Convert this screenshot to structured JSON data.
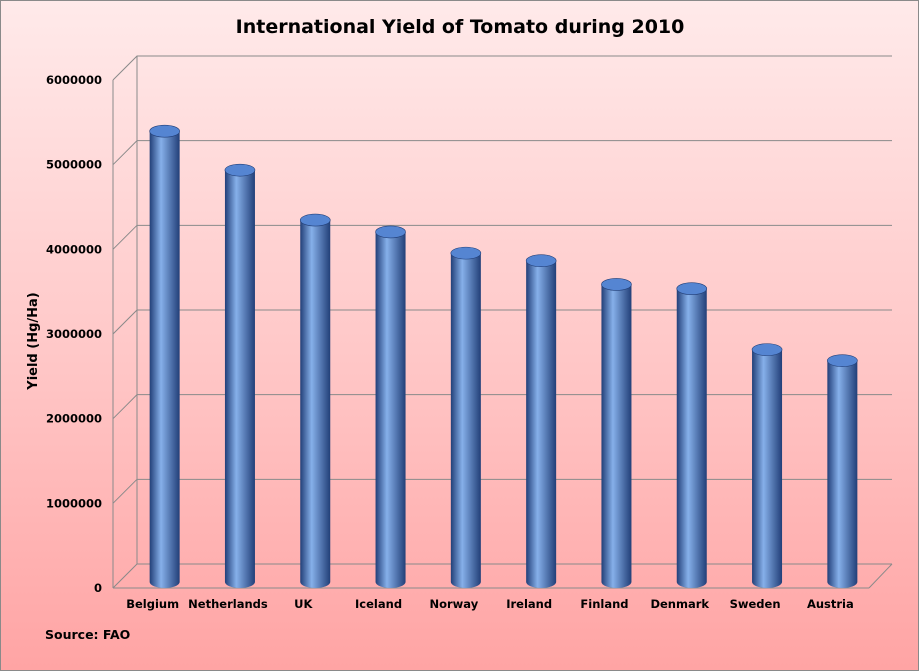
{
  "chart_data": {
    "type": "bar",
    "title": "International Yield of Tomato during 2010",
    "xlabel": "",
    "ylabel": "Yield (Hg/Ha)",
    "categories": [
      "Belgium",
      "Netherlands",
      "UK",
      "Iceland",
      "Norway",
      "Ireland",
      "Finland",
      "Denmark",
      "Sweden",
      "Austria"
    ],
    "values": [
      5230000,
      4770000,
      4180000,
      4040000,
      3790000,
      3700000,
      3420000,
      3370000,
      2650000,
      2520000
    ],
    "ylim": [
      0,
      6000000
    ],
    "yticks": [
      "0",
      "1000000",
      "2000000",
      "3000000",
      "4000000",
      "5000000",
      "6000000"
    ],
    "grid": true,
    "legend": "none",
    "bar_style": "3d-cylinder",
    "colors": {
      "bar": "#3c6fc0",
      "bar_highlight": "#86b0ea",
      "bar_shadow": "#223f78",
      "bar_top": "#5585d2",
      "grid": "#8a8a8a",
      "background_top": "#ffeaea",
      "background_bottom": "#ffa4a4"
    }
  },
  "source_note": "Source: FAO"
}
